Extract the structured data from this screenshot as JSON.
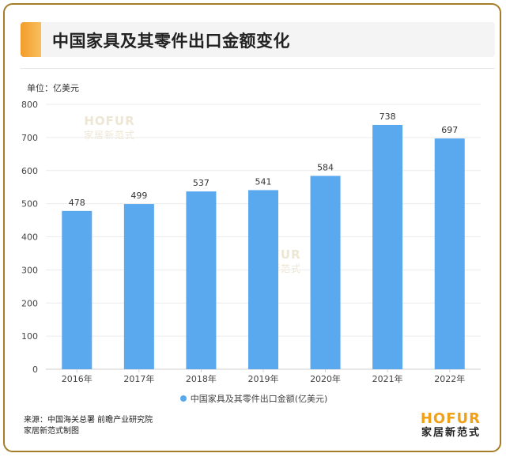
{
  "title": "中国家具及其零件出口金额变化",
  "unit_label": "单位：亿美元",
  "source_lines": [
    "来源：中国海关总署 前瞻产业研究院",
    "家居新范式制图"
  ],
  "logo": {
    "en": "HOFUR",
    "cn": "家居新范式"
  },
  "watermark": {
    "en": "HOFUR",
    "cn": "家居新范式"
  },
  "colors": {
    "bar": "#5aa8ee",
    "accent": "#f39c2a",
    "frame": "#a47d26"
  },
  "chart_data": {
    "type": "bar",
    "title": "中国家具及其零件出口金额变化",
    "categories": [
      "2016年",
      "2017年",
      "2018年",
      "2019年",
      "2020年",
      "2021年",
      "2022年"
    ],
    "series": [
      {
        "name": "中国家具及其零件出口金额(亿美元)",
        "values": [
          478,
          499,
          537,
          541,
          584,
          738,
          697
        ]
      }
    ],
    "ylim": [
      0,
      800
    ],
    "yticks": [
      0,
      100,
      200,
      300,
      400,
      500,
      600,
      700,
      800
    ],
    "grid": true,
    "legend_position": "bottom",
    "data_labels": true
  }
}
